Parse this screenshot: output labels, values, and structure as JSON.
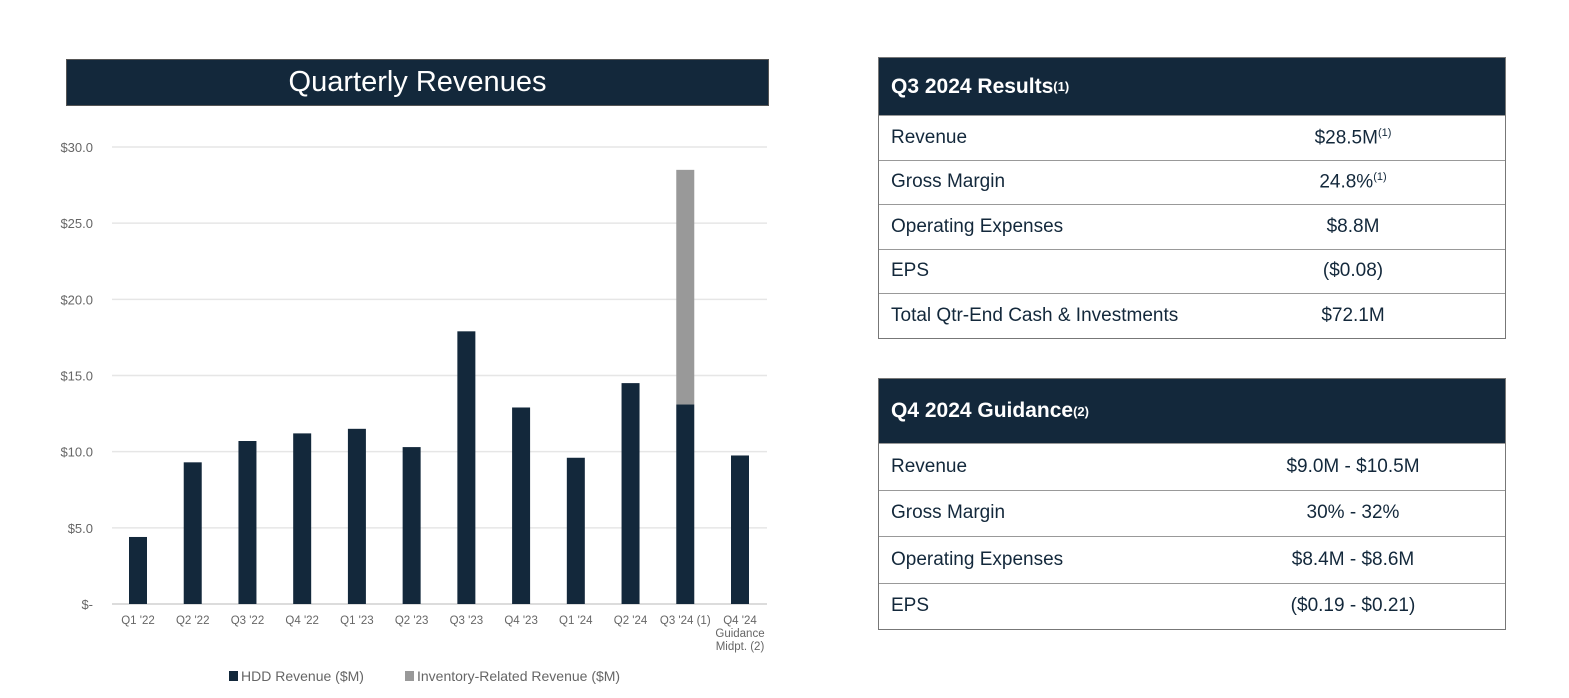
{
  "chart_data": {
    "type": "bar",
    "stacked": true,
    "title": "Quarterly Revenues",
    "categories": [
      "Q1 '22",
      "Q2 '22",
      "Q3 '22",
      "Q4 '22",
      "Q1 '23",
      "Q2 '23",
      "Q3 '23",
      "Q4 '23",
      "Q1 '24",
      "Q2 '24",
      "Q3 '24 (1)",
      "Q4 '24 Guidance Midpt. (2)"
    ],
    "yticks": [
      "$-",
      "$5.0",
      "$10.0",
      "$15.0",
      "$20.0",
      "$25.0",
      "$30.0"
    ],
    "ylim": [
      0,
      30
    ],
    "grid": true,
    "legend_placement": "bottom",
    "series": [
      {
        "name": "HDD Revenue ($M)",
        "color": "#13283b",
        "values": [
          4.4,
          9.3,
          10.7,
          11.2,
          11.5,
          10.3,
          17.9,
          12.9,
          9.6,
          14.5,
          13.1,
          9.75
        ]
      },
      {
        "name": "Inventory-Related Revenue ($M)",
        "color": "#999999",
        "values": [
          0,
          0,
          0,
          0,
          0,
          0,
          0,
          0,
          0,
          0,
          15.4,
          0
        ]
      }
    ]
  },
  "results": {
    "title": "Q3 2024 Results",
    "title_note": "(1)",
    "rows": [
      {
        "label": "Revenue",
        "value": "$28.5M",
        "note": "(1)"
      },
      {
        "label": "Gross Margin",
        "value": "24.8%",
        "note": "(1)"
      },
      {
        "label": "Operating Expenses",
        "value": "$8.8M"
      },
      {
        "label": "EPS",
        "value": "($0.08)"
      },
      {
        "label": "Total Qtr-End Cash & Investments",
        "value": "$72.1M"
      }
    ]
  },
  "guidance": {
    "title": "Q4 2024 Guidance",
    "title_note": "(2)",
    "rows": [
      {
        "label": "Revenue",
        "value": "$9.0M - $10.5M"
      },
      {
        "label": "Gross Margin",
        "value": "30% - 32%"
      },
      {
        "label": "Operating Expenses",
        "value": "$8.4M - $8.6M"
      },
      {
        "label": "EPS",
        "value": "($0.19 - $0.21)"
      }
    ]
  }
}
